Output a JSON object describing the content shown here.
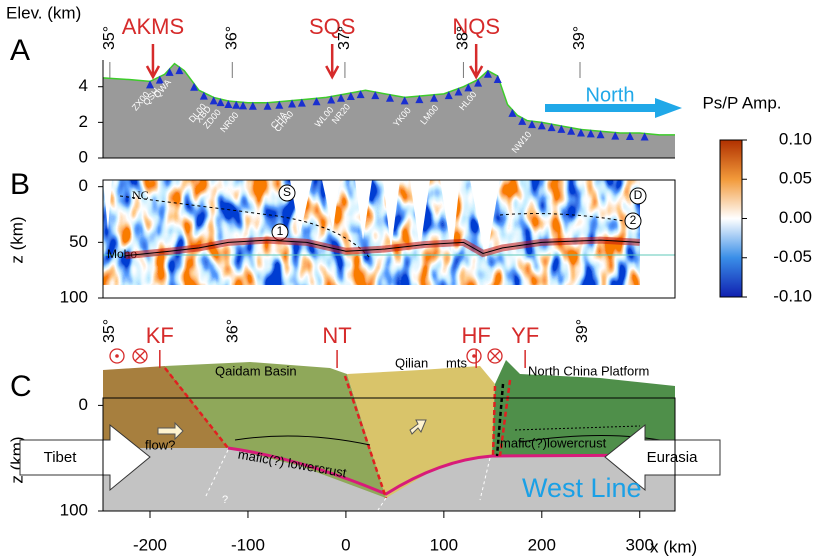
{
  "panel_labels": [
    "A",
    "B",
    "C"
  ],
  "x_axis": {
    "label": "x (km)",
    "lim": [
      -248,
      336
    ],
    "ticks": [
      -200,
      -100,
      0,
      100,
      200,
      300
    ]
  },
  "latitudes": [
    {
      "value": -241,
      "label": "35°"
    },
    {
      "value": -116,
      "label": "36°"
    },
    {
      "value": -1,
      "label": "37°"
    },
    {
      "value": 120,
      "label": "38°"
    },
    {
      "value": 239,
      "label": "39°"
    }
  ],
  "panel_a": {
    "axis_label": "Elev. (km)",
    "ylim": [
      0,
      5.5
    ],
    "yticks": [
      0,
      2,
      4
    ],
    "elevation": {
      "x": [
        -248,
        -220,
        -200,
        -185,
        -175,
        -165,
        -150,
        -135,
        -120,
        -100,
        -80,
        -60,
        -40,
        -20,
        0,
        20,
        40,
        60,
        80,
        100,
        120,
        135,
        145,
        155,
        165,
        175,
        185,
        200,
        220,
        240,
        260,
        280,
        300,
        320,
        336
      ],
      "values": [
        4.5,
        4.4,
        4.3,
        4.7,
        5.3,
        4.9,
        3.8,
        3.4,
        3.2,
        3.1,
        3.1,
        3.2,
        3.3,
        3.4,
        3.6,
        3.8,
        3.6,
        3.4,
        3.5,
        3.6,
        4.0,
        4.4,
        4.9,
        4.6,
        3.0,
        2.4,
        2.1,
        2.0,
        1.8,
        1.6,
        1.5,
        1.4,
        1.4,
        1.3,
        1.3
      ]
    },
    "stations": {
      "x": [
        -200,
        -190,
        -180,
        -170,
        -155,
        -145,
        -135,
        -128,
        -120,
        -112,
        -105,
        -95,
        -80,
        -68,
        -55,
        -45,
        -30,
        -15,
        -5,
        5,
        15,
        30,
        45,
        60,
        75,
        90,
        105,
        115,
        125,
        135,
        145,
        155,
        170,
        180,
        190,
        200,
        210,
        220,
        230,
        240,
        250,
        260,
        275,
        290,
        305
      ]
    },
    "station_names": [
      {
        "name": "ZX00",
        "x": -202
      },
      {
        "name": "QSH",
        "x": -192
      },
      {
        "name": "QWA",
        "x": -180
      },
      {
        "name": "DL00",
        "x": -144
      },
      {
        "name": "XBD",
        "x": -139
      },
      {
        "name": "ZD00",
        "x": -129
      },
      {
        "name": "NR00",
        "x": -111
      },
      {
        "name": "CHA",
        "x": -62
      },
      {
        "name": "CHA0",
        "x": -55
      },
      {
        "name": "WL00",
        "x": -14
      },
      {
        "name": "NR20",
        "x": 3
      },
      {
        "name": "YK00",
        "x": 65
      },
      {
        "name": "LM00",
        "x": 93
      },
      {
        "name": "HL00",
        "x": 132
      },
      {
        "name": "NW10",
        "x": 188
      }
    ],
    "markers": [
      {
        "label": "AKMS",
        "x": -197
      },
      {
        "label": "SQS",
        "x": -14
      },
      {
        "label": "NQS",
        "x": 133
      }
    ],
    "direction": "North"
  },
  "panel_b": {
    "axis_label": "z (km)",
    "zlim": [
      -6,
      100
    ],
    "zticks": [
      0,
      50,
      100
    ],
    "moho": {
      "x": [
        -225,
        -180,
        -150,
        -120,
        -80,
        -40,
        0,
        40,
        80,
        120,
        140,
        160,
        200,
        260,
        300
      ],
      "z": [
        62,
        58,
        55,
        50,
        48,
        50,
        58,
        56,
        52,
        50,
        60,
        55,
        50,
        48,
        50
      ]
    },
    "annotations": {
      "nc": "NC",
      "moho": "Moho",
      "s": "S",
      "d": "D",
      "one": "1",
      "two": "2"
    }
  },
  "colorbar": {
    "title": "Ps/P Amp.",
    "lim": [
      -0.1,
      0.1
    ],
    "ticks": [
      {
        "value": 0.1,
        "label": "0.10"
      },
      {
        "value": 0.05,
        "label": "0.05"
      },
      {
        "value": 0,
        "label": "0.00"
      },
      {
        "value": -0.05,
        "label": "-0.05"
      },
      {
        "value": -0.1,
        "label": "-0.10"
      }
    ]
  },
  "panel_c": {
    "axis_label": "z (km)",
    "zlim": [
      -7,
      100
    ],
    "zticks": [
      0,
      100
    ],
    "latitudes": [
      {
        "value": -241,
        "label": "35°"
      },
      {
        "value": -115,
        "label": "36°"
      },
      {
        "value": 242,
        "label": "39°"
      }
    ],
    "faults": [
      {
        "label": "KF",
        "x": -190
      },
      {
        "label": "NT",
        "x": -9
      },
      {
        "label": "HF",
        "x": 133
      },
      {
        "label": "YF",
        "x": 183
      }
    ],
    "labels": {
      "qaidam": "Qaidam Basin",
      "qilian": "Qilian",
      "mts": "mts",
      "ncp": "North China Platform",
      "flow": "flow?",
      "mafic_left": "mafic(?) lowercrust",
      "mafic_right": "mafic(?)lowercrust",
      "tibet": "Tibet",
      "eurasia": "Eurasia",
      "line": "West Line",
      "q": "?"
    }
  }
}
